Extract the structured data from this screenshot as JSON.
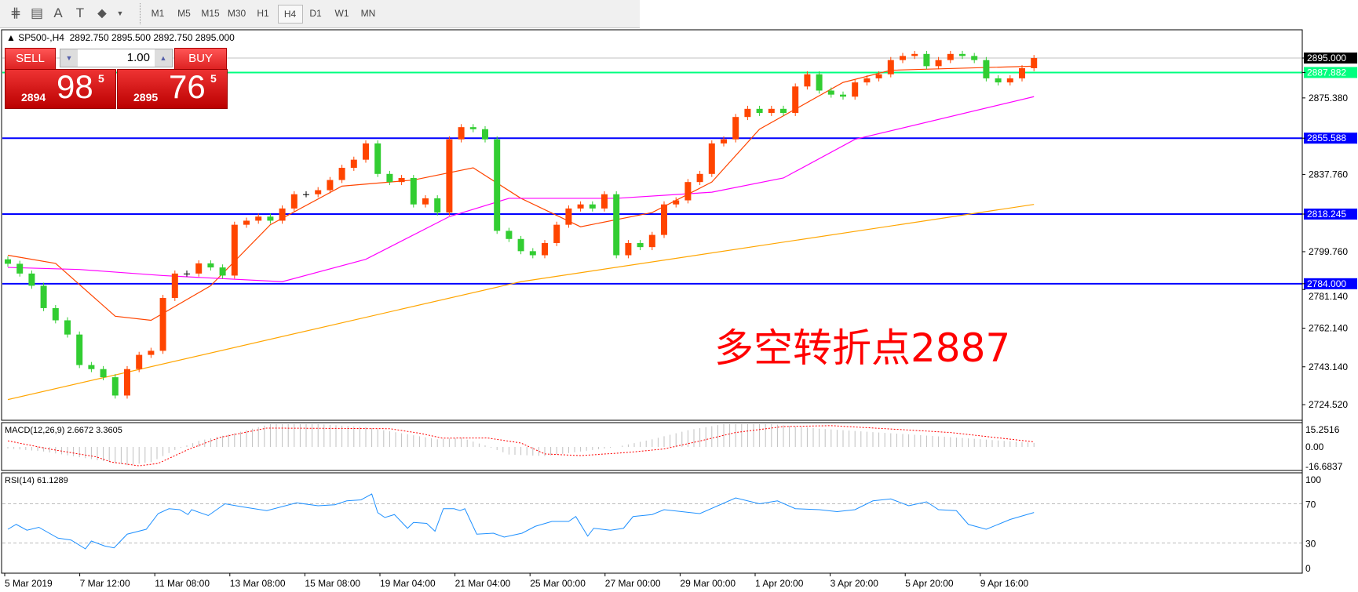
{
  "toolbar": {
    "icons": [
      "fibonacci-expansion-icon",
      "fibonacci-fan-icon",
      "text-icon",
      "text-label-icon",
      "arrows-icon"
    ],
    "icon_glyphs": [
      "⋕",
      "▤",
      "A",
      "T",
      "⬥"
    ],
    "timeframes": [
      "M1",
      "M5",
      "M15",
      "M30",
      "H1",
      "H4",
      "D1",
      "W1",
      "MN"
    ],
    "selected": "H4"
  },
  "header": {
    "symbol": "SP500-,H4",
    "ohlc": "2892.750 2895.500 2892.750 2895.000"
  },
  "trade_panel": {
    "sell_label": "SELL",
    "buy_label": "BUY",
    "lot": "1.00",
    "sell": {
      "big": "2894",
      "main": "98",
      "sup": "5"
    },
    "buy": {
      "big": "2895",
      "main": "76",
      "sup": "5"
    }
  },
  "annotation": "多空转折点2887",
  "colors": {
    "bull": "#FF4500",
    "bear": "#32CD32",
    "doji": "#000000",
    "ma_fast": "#FF4500",
    "ma_mid": "#FF00FF",
    "ma_slow": "#FFA500",
    "level_blue": "#0000FF",
    "level_green": "#00FF7F",
    "rsi": "#1E90FF",
    "macd_signal": "#FF0000",
    "macd_hist": "#C0C0C0"
  },
  "chart_data": [
    {
      "type": "candlestick",
      "title": "SP500-,H4",
      "price_ticks": [
        "2895.000",
        "2887.882",
        "2875.380",
        "2855.588",
        "2837.760",
        "2818.245",
        "2799.760",
        "2784.000",
        "2781.140",
        "2762.140",
        "2743.140",
        "2724.520"
      ],
      "ylim": [
        2724.52,
        2895.0
      ],
      "time_labels": [
        "5 Mar 2019",
        "7 Mar 12:00",
        "11 Mar 08:00",
        "13 Mar 08:00",
        "15 Mar 08:00",
        "19 Mar 04:00",
        "21 Mar 04:00",
        "25 Mar 00:00",
        "27 Mar 00:00",
        "29 Mar 00:00",
        "1 Apr 20:00",
        "3 Apr 20:00",
        "5 Apr 20:00",
        "9 Apr 16:00"
      ],
      "first_open": 2796,
      "close": [
        2793.8,
        2789,
        2783,
        2772,
        2766,
        2759,
        2744,
        2742,
        2738,
        2729,
        2742,
        2749,
        2751,
        2777,
        2789,
        2789,
        2794,
        2792,
        2788,
        2813,
        2815,
        2817,
        2815,
        2821,
        2828,
        2828,
        2830,
        2835,
        2841,
        2845,
        2853,
        2838,
        2834,
        2836,
        2823,
        2826,
        2819,
        2855,
        2861,
        2860,
        2855,
        2810,
        2806,
        2800,
        2798,
        2804,
        2813,
        2821,
        2823,
        2821,
        2828,
        2798,
        2804,
        2802,
        2808,
        2823,
        2825,
        2834,
        2838,
        2853,
        2855,
        2866,
        2870,
        2868,
        2870,
        2868,
        2881,
        2887,
        2879,
        2877,
        2876,
        2883,
        2885,
        2887,
        2894,
        2896,
        2897,
        2891,
        2894,
        2897,
        2896,
        2894,
        2885,
        2883,
        2885,
        2890,
        2895
      ],
      "levels": [
        {
          "price": 2895.0,
          "label": "2895.000",
          "kind": "current"
        },
        {
          "price": 2887.882,
          "label": "2887.882",
          "kind": "green"
        },
        {
          "price": 2855.588,
          "label": "2855.588",
          "kind": "blue"
        },
        {
          "price": 2818.245,
          "label": "2818.245",
          "kind": "blue"
        },
        {
          "price": 2784.0,
          "label": "2784.000",
          "kind": "blue"
        }
      ],
      "moving_averages": {
        "fast": [
          [
            0,
            2798
          ],
          [
            4,
            2794
          ],
          [
            9,
            2768
          ],
          [
            12,
            2766
          ],
          [
            17,
            2783
          ],
          [
            22,
            2813
          ],
          [
            28,
            2832
          ],
          [
            34,
            2835
          ],
          [
            39,
            2841
          ],
          [
            43,
            2826
          ],
          [
            48,
            2812
          ],
          [
            54,
            2819
          ],
          [
            59,
            2834
          ],
          [
            63,
            2860
          ],
          [
            70,
            2883
          ],
          [
            74,
            2889
          ],
          [
            86,
            2891
          ]
        ],
        "mid": [
          [
            0,
            2792
          ],
          [
            6,
            2791
          ],
          [
            13,
            2788
          ],
          [
            23,
            2785
          ],
          [
            30,
            2796
          ],
          [
            37,
            2817
          ],
          [
            42,
            2826
          ],
          [
            51,
            2826
          ],
          [
            59,
            2829
          ],
          [
            65,
            2836
          ],
          [
            71,
            2855
          ],
          [
            86,
            2876
          ]
        ],
        "slow": [
          [
            0,
            2727
          ],
          [
            43,
            2785
          ],
          [
            86,
            2823
          ]
        ]
      }
    },
    {
      "type": "macd",
      "label": "MACD(12,26,9) 2.6672 3.3605",
      "ticks": [
        "15.2516",
        "0.00",
        "-16.6837"
      ],
      "ylim": [
        -16.6837,
        15.2516
      ],
      "histogram": [
        [
          0,
          -1
        ],
        [
          3,
          -3
        ],
        [
          7,
          -8
        ],
        [
          10,
          -12
        ],
        [
          12,
          -10
        ],
        [
          14,
          -2
        ],
        [
          16,
          4
        ],
        [
          19,
          9
        ],
        [
          22,
          15
        ],
        [
          26,
          15
        ],
        [
          30,
          13
        ],
        [
          33,
          9
        ],
        [
          36,
          5
        ],
        [
          38,
          6
        ],
        [
          40,
          1
        ],
        [
          42,
          -5
        ],
        [
          45,
          -6
        ],
        [
          48,
          -3
        ],
        [
          51,
          0
        ],
        [
          54,
          5
        ],
        [
          57,
          11
        ],
        [
          60,
          15
        ],
        [
          64,
          15
        ],
        [
          68,
          12
        ],
        [
          72,
          10
        ],
        [
          76,
          8
        ],
        [
          86,
          2.6672
        ]
      ],
      "signal": [
        [
          0,
          4
        ],
        [
          3.5,
          -1.4
        ],
        [
          7.4,
          -6.5
        ],
        [
          8.7,
          -10
        ],
        [
          11,
          -12.4
        ],
        [
          12.6,
          -10.8
        ],
        [
          15.2,
          -1.4
        ],
        [
          17.8,
          6.3
        ],
        [
          21.7,
          12.4
        ],
        [
          32,
          12
        ],
        [
          34.6,
          8.9
        ],
        [
          36.4,
          5.8
        ],
        [
          40.2,
          5.9
        ],
        [
          43,
          2.6
        ],
        [
          45,
          -4.6
        ],
        [
          48,
          -5.7
        ],
        [
          52,
          -3.6
        ],
        [
          55,
          -1.3
        ],
        [
          58,
          3.9
        ],
        [
          61,
          9.5
        ],
        [
          65,
          13.4
        ],
        [
          69,
          14
        ],
        [
          74,
          11.8
        ],
        [
          79,
          9.5
        ],
        [
          86,
          3.3605
        ]
      ]
    },
    {
      "type": "line",
      "label": "RSI(14) 61.1289",
      "ticks": [
        "100",
        "70",
        "30",
        "0"
      ],
      "ylim": [
        0,
        100
      ],
      "levels": [
        70,
        30
      ],
      "values": [
        [
          0,
          44
        ],
        [
          0.7,
          49
        ],
        [
          1.6,
          43
        ],
        [
          2.6,
          46
        ],
        [
          4.2,
          35
        ],
        [
          5.3,
          33
        ],
        [
          6.5,
          24
        ],
        [
          7,
          32
        ],
        [
          8.1,
          27
        ],
        [
          8.9,
          25
        ],
        [
          10,
          39
        ],
        [
          11.6,
          44
        ],
        [
          12.6,
          60
        ],
        [
          13.5,
          65
        ],
        [
          14.4,
          64
        ],
        [
          15.1,
          59
        ],
        [
          15.4,
          64
        ],
        [
          16.8,
          58
        ],
        [
          18.2,
          70
        ],
        [
          19.6,
          67
        ],
        [
          21.7,
          63
        ],
        [
          24.2,
          71
        ],
        [
          26,
          68
        ],
        [
          27.4,
          69
        ],
        [
          28.4,
          73
        ],
        [
          29.6,
          74
        ],
        [
          30.5,
          80
        ],
        [
          31,
          61
        ],
        [
          31.6,
          56
        ],
        [
          32.4,
          59
        ],
        [
          33.5,
          45
        ],
        [
          34,
          51
        ],
        [
          35.1,
          50
        ],
        [
          35.8,
          42
        ],
        [
          36.5,
          65
        ],
        [
          37.4,
          65
        ],
        [
          37.9,
          63
        ],
        [
          38.3,
          65
        ],
        [
          39.3,
          39
        ],
        [
          40.7,
          40
        ],
        [
          41.6,
          36
        ],
        [
          43.1,
          40
        ],
        [
          44.2,
          47
        ],
        [
          45.6,
          52
        ],
        [
          47,
          52
        ],
        [
          47.6,
          57
        ],
        [
          48.6,
          37
        ],
        [
          49.1,
          45
        ],
        [
          50.5,
          43
        ],
        [
          51.6,
          45
        ],
        [
          52.4,
          57
        ],
        [
          54,
          59
        ],
        [
          55,
          64
        ],
        [
          58,
          60
        ],
        [
          61,
          76
        ],
        [
          63,
          70
        ],
        [
          64.5,
          73
        ],
        [
          66,
          65
        ],
        [
          68,
          64
        ],
        [
          69.5,
          62
        ],
        [
          71,
          64
        ],
        [
          72.5,
          73
        ],
        [
          74,
          75
        ],
        [
          75.5,
          68
        ],
        [
          77,
          72
        ],
        [
          78,
          64
        ],
        [
          79.5,
          63
        ],
        [
          80.5,
          49
        ],
        [
          82,
          44
        ],
        [
          84,
          54
        ],
        [
          86,
          61.1289
        ]
      ]
    }
  ]
}
